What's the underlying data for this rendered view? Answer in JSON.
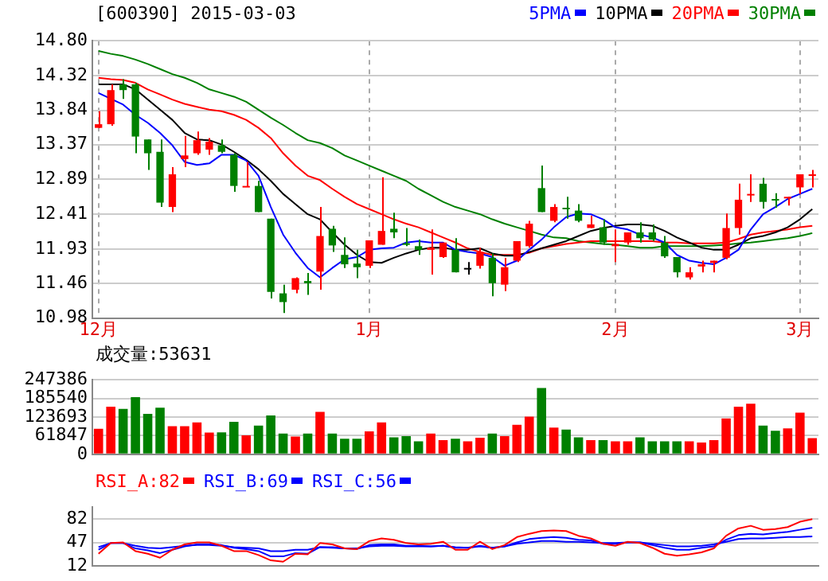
{
  "chart_data": [
    {
      "type": "candlestick",
      "title": "[600390] 2015-03-03",
      "legend": "top right",
      "grid": true,
      "categories": [
        "12月",
        null,
        null,
        null,
        null,
        null,
        null,
        null,
        null,
        null,
        null,
        null,
        null,
        null,
        null,
        null,
        null,
        null,
        null,
        null,
        null,
        null,
        "1月",
        null,
        null,
        null,
        null,
        null,
        null,
        null,
        null,
        null,
        null,
        null,
        null,
        null,
        null,
        null,
        null,
        null,
        null,
        null,
        "2月",
        null,
        null,
        null,
        null,
        null,
        null,
        null,
        null,
        null,
        null,
        null,
        null,
        null,
        null,
        "3月",
        null
      ],
      "ohlc": [
        [
          13.6,
          13.83,
          13.6,
          13.65
        ],
        [
          13.65,
          14.2,
          13.63,
          14.12
        ],
        [
          14.2,
          14.27,
          14.0,
          14.12
        ],
        [
          14.2,
          14.22,
          13.25,
          13.48
        ],
        [
          13.44,
          13.44,
          13.02,
          13.25
        ],
        [
          13.27,
          13.44,
          12.51,
          12.57
        ],
        [
          12.51,
          13.06,
          12.44,
          12.96
        ],
        [
          13.17,
          13.49,
          13.06,
          13.22
        ],
        [
          13.25,
          13.55,
          13.23,
          13.43
        ],
        [
          13.3,
          13.46,
          13.23,
          13.41
        ],
        [
          13.36,
          13.44,
          13.25,
          13.27
        ],
        [
          13.23,
          13.25,
          12.72,
          12.8
        ],
        [
          12.79,
          13.13,
          12.79,
          12.8
        ],
        [
          12.8,
          12.87,
          12.44,
          12.44
        ],
        [
          12.35,
          12.35,
          11.25,
          11.34
        ],
        [
          11.32,
          11.44,
          11.05,
          11.2
        ],
        [
          11.37,
          11.54,
          11.32,
          11.53
        ],
        [
          11.49,
          11.6,
          11.3,
          11.46
        ],
        [
          11.62,
          12.51,
          11.37,
          12.11
        ],
        [
          12.21,
          12.25,
          11.89,
          11.98
        ],
        [
          11.85,
          12.09,
          11.67,
          11.72
        ],
        [
          11.73,
          11.92,
          11.53,
          11.68
        ],
        [
          11.7,
          12.05,
          11.67,
          12.05
        ],
        [
          11.99,
          12.92,
          11.99,
          12.18
        ],
        [
          12.21,
          12.43,
          12.08,
          12.16
        ],
        [
          12.01,
          12.22,
          11.97,
          11.99
        ],
        [
          11.97,
          12.06,
          11.85,
          11.92
        ],
        [
          11.92,
          12.2,
          11.58,
          11.95
        ],
        [
          11.82,
          12.02,
          11.81,
          12.02
        ],
        [
          11.92,
          12.08,
          11.61,
          11.61
        ],
        [
          11.67,
          11.75,
          11.58,
          11.67
        ],
        [
          11.7,
          11.95,
          11.66,
          11.89
        ],
        [
          11.81,
          11.87,
          11.28,
          11.46
        ],
        [
          11.44,
          11.81,
          11.35,
          11.68
        ],
        [
          11.77,
          12.04,
          11.75,
          12.04
        ],
        [
          11.97,
          12.32,
          11.95,
          12.28
        ],
        [
          12.77,
          13.08,
          12.44,
          12.44
        ],
        [
          12.32,
          12.55,
          12.3,
          12.51
        ],
        [
          12.5,
          12.65,
          12.35,
          12.49
        ],
        [
          12.46,
          12.55,
          12.3,
          12.32
        ],
        [
          12.22,
          12.39,
          12.22,
          12.27
        ],
        [
          12.23,
          12.34,
          11.99,
          12.02
        ],
        [
          11.97,
          12.2,
          11.75,
          12.0
        ],
        [
          12.02,
          12.16,
          11.99,
          12.16
        ],
        [
          12.16,
          12.3,
          12.02,
          12.08
        ],
        [
          12.16,
          12.27,
          12.04,
          12.06
        ],
        [
          12.02,
          12.11,
          11.81,
          11.83
        ],
        [
          11.82,
          11.82,
          11.54,
          11.61
        ],
        [
          11.54,
          11.68,
          11.51,
          11.61
        ],
        [
          11.69,
          11.77,
          11.61,
          11.72
        ],
        [
          11.74,
          11.77,
          11.61,
          11.77
        ],
        [
          11.81,
          12.42,
          11.79,
          12.22
        ],
        [
          12.22,
          12.83,
          12.13,
          12.61
        ],
        [
          12.67,
          12.96,
          12.58,
          12.69
        ],
        [
          12.83,
          12.91,
          12.49,
          12.58
        ],
        [
          12.62,
          12.7,
          12.5,
          12.61
        ],
        [
          12.63,
          12.65,
          12.53,
          12.65
        ],
        [
          12.78,
          12.96,
          12.69,
          12.96
        ],
        [
          12.94,
          13.02,
          12.78,
          12.96
        ]
      ],
      "colors": [
        "#ff0000",
        "#ff0000",
        "#008000",
        "#008000",
        "#008000",
        "#008000",
        "#ff0000",
        "#ff0000",
        "#ff0000",
        "#ff0000",
        "#008000",
        "#008000",
        "#ff0000",
        "#008000",
        "#008000",
        "#008000",
        "#ff0000",
        "#008000",
        "#ff0000",
        "#008000",
        "#008000",
        "#008000",
        "#ff0000",
        "#ff0000",
        "#008000",
        "#008000",
        "#008000",
        "#ff0000",
        "#ff0000",
        "#008000",
        "#000000",
        "#ff0000",
        "#008000",
        "#ff0000",
        "#ff0000",
        "#ff0000",
        "#008000",
        "#ff0000",
        "#008000",
        "#008000",
        "#ff0000",
        "#008000",
        "#ff0000",
        "#ff0000",
        "#008000",
        "#008000",
        "#008000",
        "#008000",
        "#ff0000",
        "#ff0000",
        "#ff0000",
        "#ff0000",
        "#ff0000",
        "#ff0000",
        "#008000",
        "#008000",
        "#ff0000",
        "#ff0000",
        "#ff0000"
      ],
      "series": [
        {
          "name": "5PMA",
          "type": "line",
          "color": "#0000ff",
          "values": [
            14.08,
            14.0,
            13.92,
            13.78,
            13.67,
            13.53,
            13.36,
            13.13,
            13.09,
            13.11,
            13.23,
            13.23,
            13.15,
            12.94,
            12.51,
            12.13,
            11.88,
            11.67,
            11.54,
            11.67,
            11.79,
            11.82,
            11.92,
            11.94,
            11.95,
            12.02,
            12.04,
            12.02,
            12.02,
            11.92,
            11.89,
            11.87,
            11.82,
            11.7,
            11.77,
            11.92,
            12.06,
            12.23,
            12.37,
            12.42,
            12.41,
            12.34,
            12.23,
            12.2,
            12.13,
            12.09,
            12.02,
            11.85,
            11.77,
            11.74,
            11.72,
            11.81,
            11.92,
            12.2,
            12.41,
            12.51,
            12.62,
            12.69,
            12.76
          ]
        },
        {
          "name": "10PMA",
          "type": "line",
          "color": "#000000",
          "values": [
            14.2,
            14.2,
            14.2,
            14.13,
            13.99,
            13.85,
            13.71,
            13.53,
            13.44,
            13.43,
            13.37,
            13.27,
            13.16,
            13.03,
            12.87,
            12.69,
            12.55,
            12.41,
            12.34,
            12.16,
            11.99,
            11.85,
            11.75,
            11.74,
            11.81,
            11.87,
            11.92,
            11.95,
            11.95,
            11.92,
            11.92,
            11.94,
            11.87,
            11.84,
            11.84,
            11.89,
            11.94,
            11.99,
            12.04,
            12.11,
            12.18,
            12.22,
            12.25,
            12.27,
            12.27,
            12.25,
            12.18,
            12.09,
            12.02,
            11.95,
            11.92,
            11.92,
            11.99,
            12.08,
            12.11,
            12.16,
            12.23,
            12.34,
            12.48
          ]
        },
        {
          "name": "20PMA",
          "type": "line",
          "color": "#ff0000",
          "values": [
            14.29,
            14.27,
            14.26,
            14.22,
            14.13,
            14.06,
            13.99,
            13.93,
            13.89,
            13.85,
            13.83,
            13.78,
            13.71,
            13.6,
            13.46,
            13.25,
            13.08,
            12.94,
            12.88,
            12.76,
            12.65,
            12.55,
            12.48,
            12.41,
            12.34,
            12.28,
            12.23,
            12.16,
            12.09,
            12.02,
            11.94,
            11.89,
            11.85,
            11.85,
            11.85,
            11.88,
            11.94,
            11.97,
            12.0,
            12.02,
            12.04,
            12.04,
            12.04,
            12.04,
            12.04,
            12.04,
            12.02,
            12.02,
            12.01,
            12.01,
            12.01,
            12.02,
            12.07,
            12.13,
            12.16,
            12.18,
            12.2,
            12.23,
            12.25
          ]
        },
        {
          "name": "30PMA",
          "type": "line",
          "color": "#008000",
          "values": [
            14.66,
            14.62,
            14.59,
            14.54,
            14.48,
            14.41,
            14.34,
            14.29,
            14.22,
            14.13,
            14.08,
            14.03,
            13.96,
            13.85,
            13.74,
            13.64,
            13.53,
            13.43,
            13.39,
            13.32,
            13.22,
            13.15,
            13.08,
            13.01,
            12.94,
            12.87,
            12.76,
            12.67,
            12.58,
            12.51,
            12.46,
            12.41,
            12.34,
            12.28,
            12.23,
            12.18,
            12.13,
            12.09,
            12.08,
            12.04,
            12.02,
            12.0,
            11.99,
            11.97,
            11.95,
            11.95,
            11.97,
            11.97,
            11.97,
            11.97,
            11.98,
            11.99,
            12.01,
            12.02,
            12.04,
            12.06,
            12.08,
            12.11,
            12.15
          ]
        }
      ],
      "ylim": [
        10.98,
        14.8
      ],
      "yticks": [
        {
          "value": 10.98,
          "label": "10.98"
        },
        {
          "value": 11.46,
          "label": "11.46"
        },
        {
          "value": 11.93,
          "label": "11.93"
        },
        {
          "value": 12.41,
          "label": "12.41"
        },
        {
          "value": 12.89,
          "label": "12.89"
        },
        {
          "value": 13.37,
          "label": "13.37"
        },
        {
          "value": 13.84,
          "label": "13.84"
        },
        {
          "value": 14.32,
          "label": "14.32"
        },
        {
          "value": 14.8,
          "label": "14.80"
        }
      ]
    },
    {
      "type": "bar",
      "title": "成交量:53631",
      "grid": "y",
      "tick_labels": "y",
      "categories": [
        null,
        null,
        null,
        null,
        null,
        null,
        null,
        null,
        null,
        null,
        null,
        null,
        null,
        null,
        null,
        null,
        null,
        null,
        null,
        null,
        null,
        null,
        null,
        null,
        null,
        null,
        null,
        null,
        null,
        null,
        null,
        null,
        null,
        null,
        null,
        null,
        null,
        null,
        null,
        null,
        null,
        null,
        null,
        null,
        null,
        null,
        null,
        null,
        null,
        null,
        null,
        null,
        null,
        null,
        null,
        null,
        null,
        null,
        null
      ],
      "values": [
        85000,
        158000,
        151000,
        190000,
        134000,
        155000,
        93000,
        93000,
        106000,
        72000,
        73000,
        108000,
        63000,
        95000,
        129000,
        69000,
        59000,
        69000,
        141000,
        69000,
        52000,
        52000,
        76000,
        106000,
        56000,
        60000,
        43000,
        69000,
        47000,
        52000,
        43000,
        55000,
        69000,
        60000,
        98000,
        125000,
        220000,
        89000,
        82000,
        56000,
        47000,
        47000,
        43000,
        43000,
        56000,
        43000,
        43000,
        43000,
        43000,
        39000,
        47000,
        119000,
        158000,
        168000,
        95000,
        78000,
        86000,
        138000,
        53631
      ],
      "colors": [
        "#ff0000",
        "#ff0000",
        "#008000",
        "#008000",
        "#008000",
        "#008000",
        "#ff0000",
        "#ff0000",
        "#ff0000",
        "#ff0000",
        "#008000",
        "#008000",
        "#ff0000",
        "#008000",
        "#008000",
        "#008000",
        "#ff0000",
        "#008000",
        "#ff0000",
        "#008000",
        "#008000",
        "#008000",
        "#ff0000",
        "#ff0000",
        "#008000",
        "#008000",
        "#008000",
        "#ff0000",
        "#ff0000",
        "#008000",
        "#ff0000",
        "#ff0000",
        "#008000",
        "#ff0000",
        "#ff0000",
        "#ff0000",
        "#008000",
        "#ff0000",
        "#008000",
        "#008000",
        "#ff0000",
        "#008000",
        "#ff0000",
        "#ff0000",
        "#008000",
        "#008000",
        "#008000",
        "#008000",
        "#ff0000",
        "#ff0000",
        "#ff0000",
        "#ff0000",
        "#ff0000",
        "#ff0000",
        "#008000",
        "#008000",
        "#ff0000",
        "#ff0000",
        "#ff0000"
      ],
      "ylim": [
        0,
        247386
      ],
      "yticks": [
        0,
        61847,
        123693,
        185540,
        247386
      ]
    },
    {
      "type": "line",
      "grid": "y",
      "tick_labels": "y",
      "legend": "top left",
      "categories": [
        null,
        null,
        null,
        null,
        null,
        null,
        null,
        null,
        null,
        null,
        null,
        null,
        null,
        null,
        null,
        null,
        null,
        null,
        null,
        null,
        null,
        null,
        null,
        null,
        null,
        null,
        null,
        null,
        null,
        null,
        null,
        null,
        null,
        null,
        null,
        null,
        null,
        null,
        null,
        null,
        null,
        null,
        null,
        null,
        null,
        null,
        null,
        null,
        null,
        null,
        null,
        null,
        null,
        null,
        null,
        null,
        null,
        null,
        null
      ],
      "series": [
        {
          "name": "RSI_A:82",
          "color": "#ff0000",
          "values": [
            30,
            46,
            47,
            34,
            30,
            24,
            36,
            44,
            47,
            47,
            42,
            34,
            34,
            28,
            20,
            18,
            30,
            29,
            46,
            44,
            38,
            37,
            49,
            53,
            51,
            46,
            44,
            45,
            48,
            36,
            36,
            48,
            37,
            43,
            55,
            60,
            64,
            65,
            64,
            57,
            53,
            45,
            42,
            48,
            46,
            39,
            30,
            27,
            29,
            32,
            38,
            57,
            68,
            72,
            66,
            67,
            70,
            78,
            82
          ]
        },
        {
          "name": "RSI_B:69",
          "color": "#0000ff",
          "values": [
            36,
            46,
            46,
            38,
            35,
            31,
            36,
            41,
            44,
            44,
            43,
            39,
            37,
            34,
            26,
            26,
            31,
            30,
            40,
            40,
            38,
            37,
            43,
            44,
            44,
            42,
            42,
            41,
            42,
            39,
            39,
            42,
            39,
            41,
            47,
            52,
            54,
            55,
            54,
            51,
            50,
            45,
            45,
            47,
            47,
            43,
            39,
            36,
            36,
            39,
            41,
            51,
            58,
            60,
            59,
            61,
            63,
            66,
            69
          ]
        },
        {
          "name": "RSI_C:56",
          "color": "#0000ff",
          "values": [
            40,
            46,
            46,
            42,
            39,
            38,
            40,
            42,
            43,
            43,
            42,
            40,
            39,
            38,
            34,
            34,
            36,
            36,
            40,
            39,
            38,
            38,
            41,
            42,
            42,
            41,
            41,
            41,
            42,
            40,
            39,
            41,
            39,
            41,
            45,
            47,
            49,
            49,
            48,
            48,
            47,
            46,
            46,
            47,
            47,
            45,
            43,
            41,
            41,
            42,
            44,
            48,
            52,
            53,
            53,
            54,
            55,
            55,
            56
          ]
        }
      ],
      "ylim": [
        12,
        100
      ],
      "yticks": [
        12,
        47,
        82
      ]
    }
  ]
}
